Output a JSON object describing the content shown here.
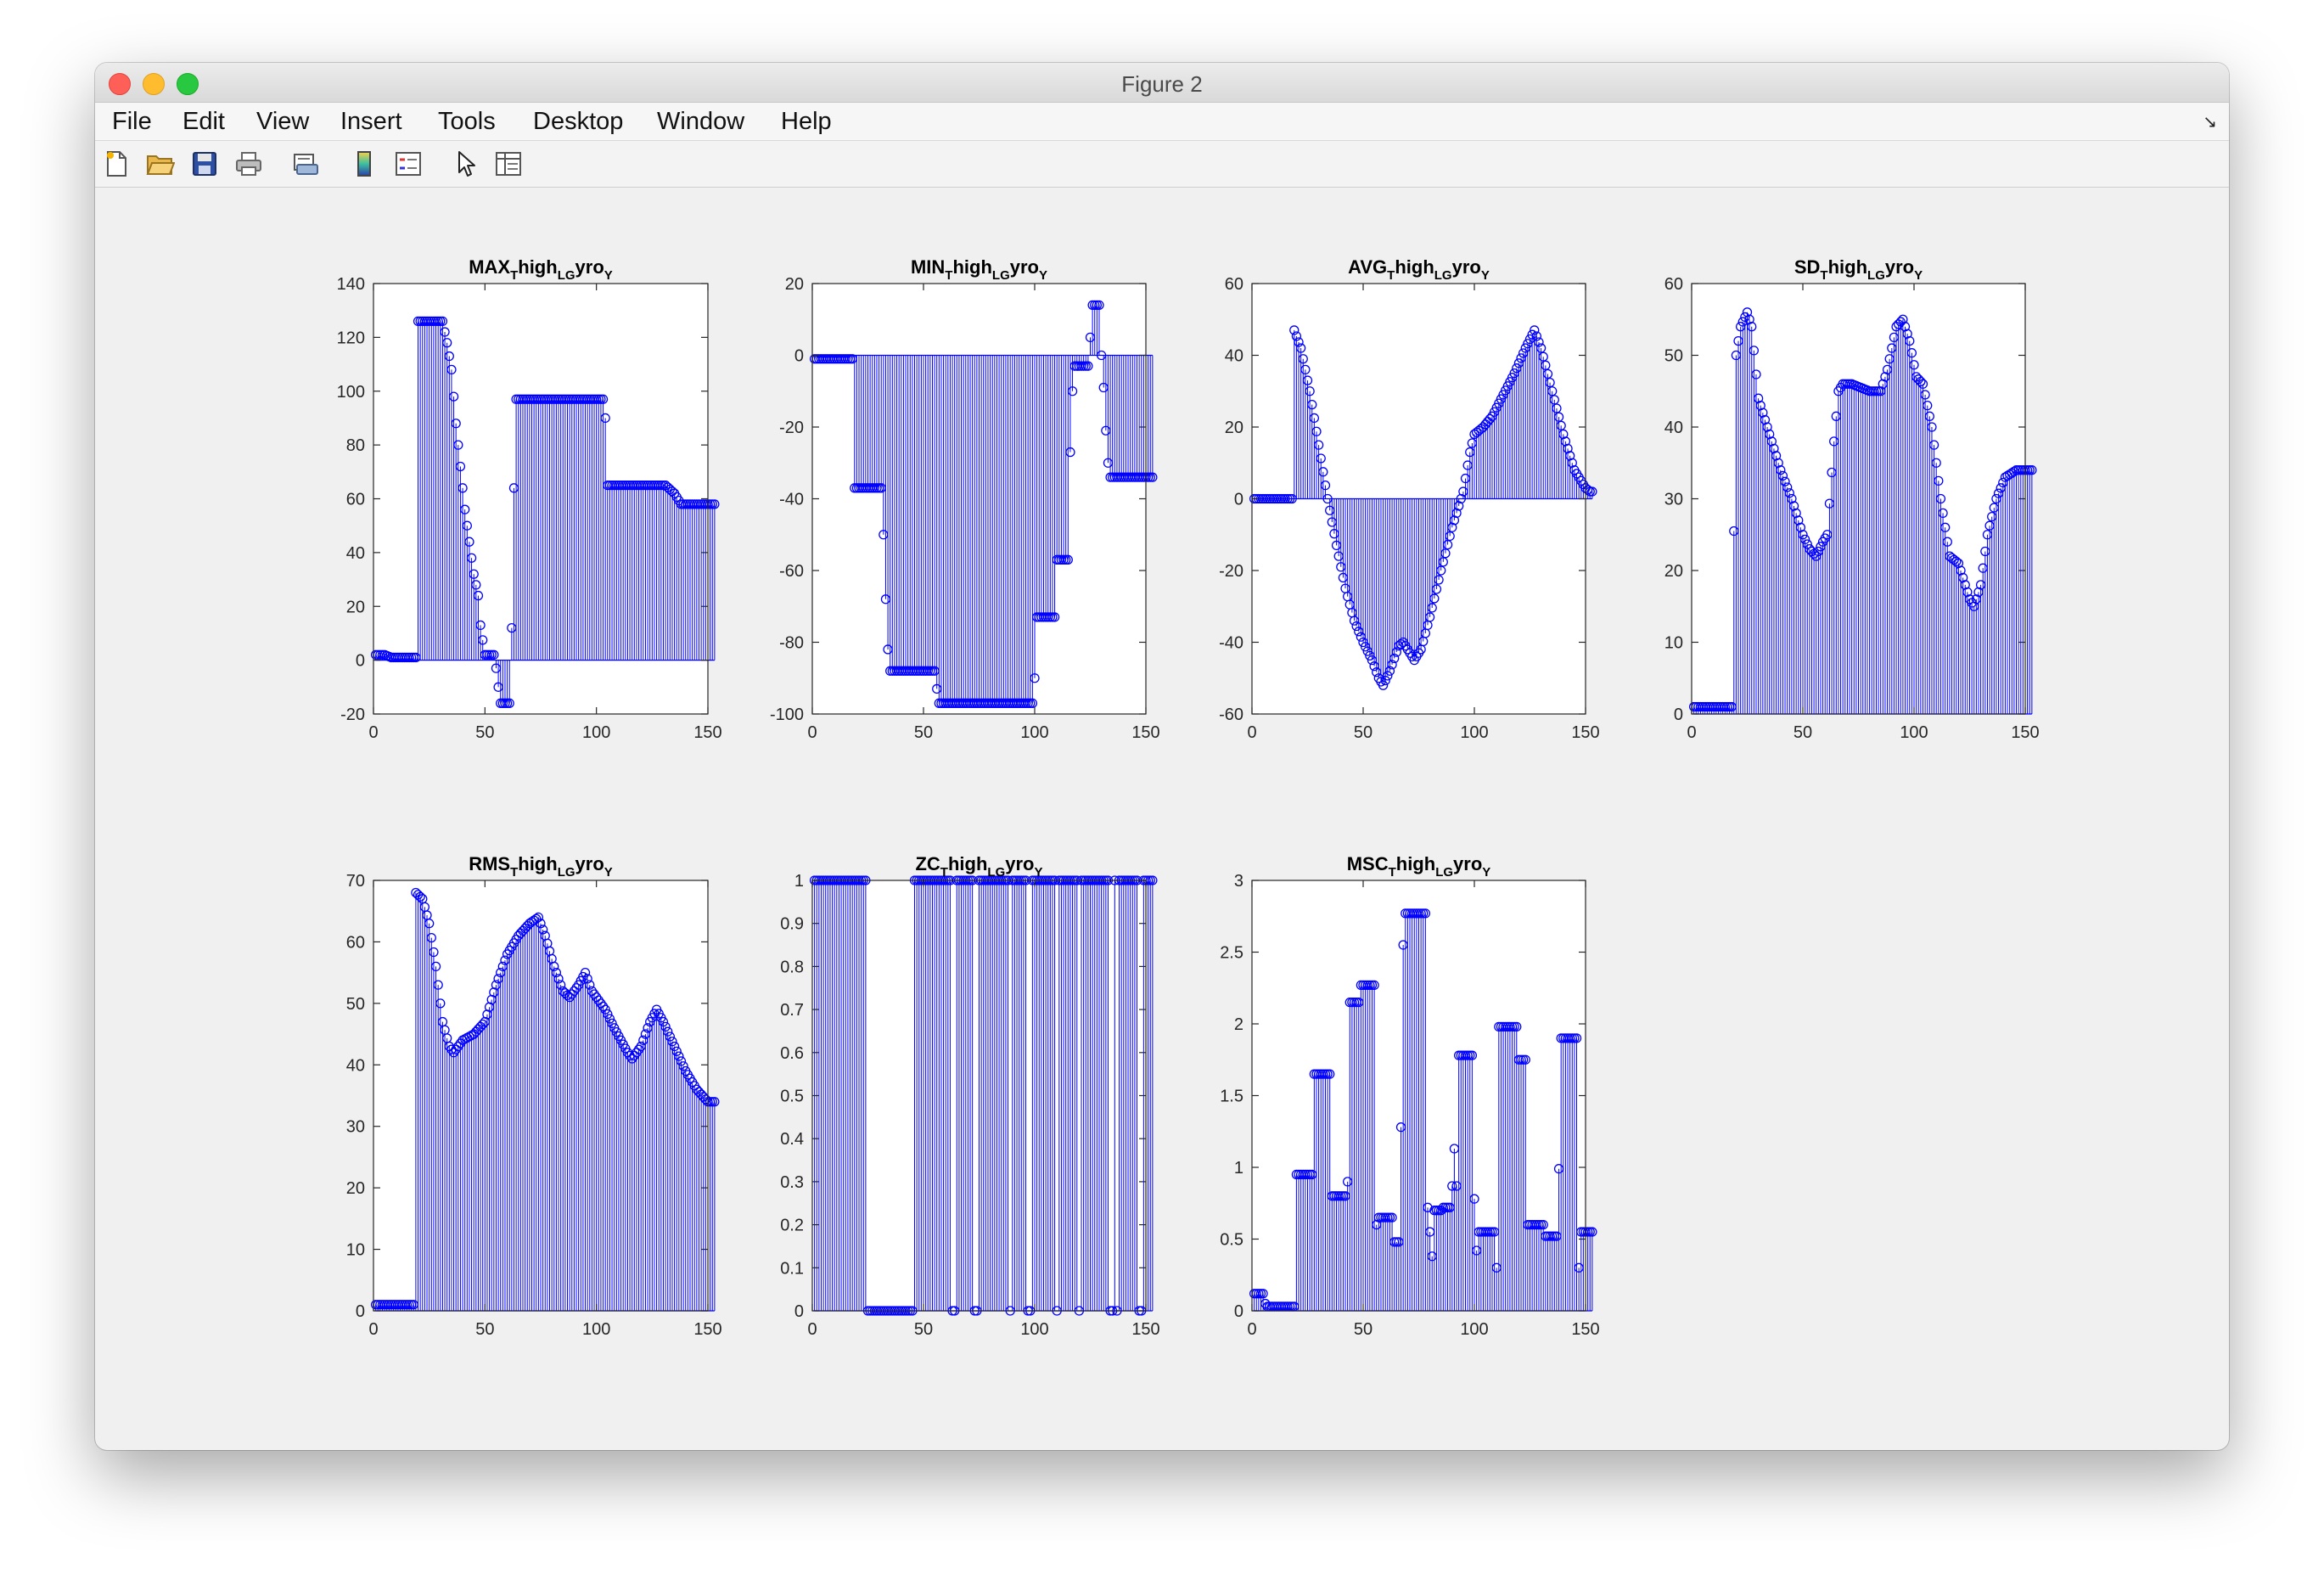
{
  "window": {
    "title": "Figure 2"
  },
  "menu": [
    "File",
    "Edit",
    "View",
    "Insert",
    "Tools",
    "Desktop",
    "Window",
    "Help"
  ],
  "toolbar": [
    "new-figure-icon",
    "open-file-icon",
    "save-icon",
    "print-icon",
    "print-preview-icon",
    "colorbar-icon",
    "legend-icon",
    "edit-plot-pointer-icon",
    "property-inspector-icon"
  ],
  "chart_data": [
    {
      "type": "stem",
      "title": "MAX_{T}high_{LG}yro_{Y}",
      "xlim": [
        0,
        150
      ],
      "ylim": [
        -20,
        140
      ],
      "xticks": [
        0,
        50,
        100,
        150
      ],
      "yticks": [
        -20,
        0,
        20,
        40,
        60,
        80,
        100,
        120,
        140
      ],
      "color": "#0000ff",
      "keypoints": [
        [
          1,
          2
        ],
        [
          5,
          2
        ],
        [
          8,
          1
        ],
        [
          14,
          1
        ],
        [
          19,
          1
        ],
        [
          20,
          126
        ],
        [
          31,
          126
        ],
        [
          33,
          118
        ],
        [
          35,
          108
        ],
        [
          37,
          88
        ],
        [
          39,
          72
        ],
        [
          41,
          56
        ],
        [
          43,
          44
        ],
        [
          45,
          32
        ],
        [
          47,
          24
        ],
        [
          48,
          13
        ],
        [
          50,
          2
        ],
        [
          54,
          2
        ],
        [
          55,
          -3
        ],
        [
          56,
          -10
        ],
        [
          57,
          -16
        ],
        [
          61,
          -16
        ],
        [
          62,
          12
        ],
        [
          63,
          64
        ],
        [
          64,
          97
        ],
        [
          103,
          97
        ],
        [
          104,
          90
        ],
        [
          105,
          65
        ],
        [
          131,
          65
        ],
        [
          135,
          62
        ],
        [
          138,
          58
        ],
        [
          153,
          58
        ]
      ]
    },
    {
      "type": "stem",
      "title": "MIN_{T}high_{LG}yro_{Y}",
      "xlim": [
        0,
        150
      ],
      "ylim": [
        -100,
        20
      ],
      "xticks": [
        0,
        50,
        100,
        150
      ],
      "yticks": [
        -100,
        -80,
        -60,
        -40,
        -20,
        0,
        20
      ],
      "color": "#0000ff",
      "keypoints": [
        [
          1,
          -1
        ],
        [
          18,
          -1
        ],
        [
          19,
          -37
        ],
        [
          31,
          -37
        ],
        [
          32,
          -50
        ],
        [
          33,
          -68
        ],
        [
          34,
          -82
        ],
        [
          35,
          -88
        ],
        [
          55,
          -88
        ],
        [
          56,
          -93
        ],
        [
          57,
          -97
        ],
        [
          99,
          -97
        ],
        [
          100,
          -90
        ],
        [
          101,
          -73
        ],
        [
          109,
          -73
        ],
        [
          110,
          -57
        ],
        [
          115,
          -57
        ],
        [
          116,
          -27
        ],
        [
          117,
          -10
        ],
        [
          118,
          -3
        ],
        [
          124,
          -3
        ],
        [
          125,
          5
        ],
        [
          126,
          14
        ],
        [
          129,
          14
        ],
        [
          130,
          0
        ],
        [
          131,
          -9
        ],
        [
          132,
          -21
        ],
        [
          133,
          -30
        ],
        [
          134,
          -34
        ],
        [
          153,
          -34
        ]
      ]
    },
    {
      "type": "stem",
      "title": "AVG_{T}high_{LG}yro_{Y}",
      "xlim": [
        0,
        150
      ],
      "ylim": [
        -60,
        60
      ],
      "xticks": [
        0,
        50,
        100,
        150
      ],
      "yticks": [
        -60,
        -40,
        -20,
        0,
        20,
        40,
        60
      ],
      "color": "#0000ff",
      "keypoints": [
        [
          1,
          0
        ],
        [
          18,
          0
        ],
        [
          19,
          47
        ],
        [
          22,
          42
        ],
        [
          26,
          30
        ],
        [
          30,
          15
        ],
        [
          34,
          0
        ],
        [
          38,
          -13
        ],
        [
          42,
          -25
        ],
        [
          46,
          -34
        ],
        [
          50,
          -40
        ],
        [
          54,
          -45
        ],
        [
          57,
          -50
        ],
        [
          59,
          -52
        ],
        [
          62,
          -48
        ],
        [
          66,
          -41
        ],
        [
          68,
          -40
        ],
        [
          70,
          -42
        ],
        [
          73,
          -45
        ],
        [
          76,
          -42
        ],
        [
          80,
          -33
        ],
        [
          85,
          -20
        ],
        [
          90,
          -8
        ],
        [
          95,
          2
        ],
        [
          98,
          13
        ],
        [
          100,
          18
        ],
        [
          104,
          20
        ],
        [
          108,
          23
        ],
        [
          113,
          29
        ],
        [
          118,
          35
        ],
        [
          123,
          42
        ],
        [
          127,
          47
        ],
        [
          130,
          42
        ],
        [
          135,
          30
        ],
        [
          140,
          18
        ],
        [
          145,
          8
        ],
        [
          150,
          3
        ],
        [
          152,
          2
        ]
      ]
    },
    {
      "type": "stem",
      "title": "SD_{T}high_{LG}yro_{Y}",
      "xlim": [
        0,
        150
      ],
      "ylim": [
        0,
        60
      ],
      "xticks": [
        0,
        50,
        100,
        150
      ],
      "yticks": [
        0,
        10,
        20,
        30,
        40,
        50,
        60
      ],
      "color": "#0000ff",
      "keypoints": [
        [
          1,
          1
        ],
        [
          18,
          1
        ],
        [
          20,
          50
        ],
        [
          22,
          54
        ],
        [
          25,
          56
        ],
        [
          27,
          54
        ],
        [
          30,
          44
        ],
        [
          35,
          39
        ],
        [
          40,
          34
        ],
        [
          45,
          30
        ],
        [
          50,
          25
        ],
        [
          53,
          23
        ],
        [
          56,
          22
        ],
        [
          59,
          24
        ],
        [
          61,
          25
        ],
        [
          64,
          38
        ],
        [
          66,
          45
        ],
        [
          68,
          46
        ],
        [
          72,
          46
        ],
        [
          80,
          45
        ],
        [
          85,
          45
        ],
        [
          88,
          48
        ],
        [
          92,
          54
        ],
        [
          95,
          55
        ],
        [
          98,
          52
        ],
        [
          101,
          47
        ],
        [
          104,
          46
        ],
        [
          108,
          40
        ],
        [
          112,
          30
        ],
        [
          116,
          22
        ],
        [
          120,
          21
        ],
        [
          122,
          19
        ],
        [
          125,
          16
        ],
        [
          127,
          15
        ],
        [
          130,
          18
        ],
        [
          133,
          25
        ],
        [
          137,
          30
        ],
        [
          141,
          33
        ],
        [
          146,
          34
        ],
        [
          152,
          34
        ]
      ]
    },
    {
      "type": "stem",
      "title": "RMS_{T}high_{LG}yro_{Y}",
      "xlim": [
        0,
        150
      ],
      "ylim": [
        0,
        70
      ],
      "xticks": [
        0,
        50,
        100,
        150
      ],
      "yticks": [
        0,
        10,
        20,
        30,
        40,
        50,
        60,
        70
      ],
      "color": "#0000ff",
      "keypoints": [
        [
          1,
          1
        ],
        [
          18,
          1
        ],
        [
          19,
          68
        ],
        [
          22,
          67
        ],
        [
          25,
          63
        ],
        [
          28,
          56
        ],
        [
          31,
          47
        ],
        [
          34,
          43
        ],
        [
          36,
          42
        ],
        [
          40,
          44
        ],
        [
          45,
          45
        ],
        [
          50,
          47
        ],
        [
          55,
          53
        ],
        [
          60,
          58
        ],
        [
          65,
          61
        ],
        [
          70,
          63
        ],
        [
          74,
          64
        ],
        [
          77,
          61
        ],
        [
          81,
          56
        ],
        [
          85,
          52
        ],
        [
          88,
          51
        ],
        [
          92,
          53
        ],
        [
          95,
          55
        ],
        [
          98,
          52
        ],
        [
          104,
          49
        ],
        [
          108,
          46
        ],
        [
          114,
          42
        ],
        [
          116,
          41
        ],
        [
          120,
          43
        ],
        [
          124,
          47
        ],
        [
          127,
          49
        ],
        [
          130,
          47
        ],
        [
          135,
          43
        ],
        [
          140,
          39
        ],
        [
          145,
          36
        ],
        [
          150,
          34
        ],
        [
          152,
          34
        ]
      ]
    },
    {
      "type": "stem",
      "title": "ZC_{T}high_{LG}yro_{Y}",
      "xlim": [
        0,
        150
      ],
      "ylim": [
        0,
        1
      ],
      "xticks": [
        0,
        50,
        100,
        150
      ],
      "yticks": [
        0,
        0.1,
        0.2,
        0.3,
        0.4,
        0.5,
        0.6,
        0.7,
        0.8,
        0.9,
        1
      ],
      "color": "#0000ff",
      "zero_indices": [
        25,
        26,
        27,
        28,
        29,
        30,
        31,
        32,
        33,
        34,
        35,
        36,
        37,
        38,
        39,
        40,
        41,
        42,
        43,
        44,
        45,
        63,
        64,
        73,
        74,
        89,
        97,
        98,
        110,
        120,
        134,
        135,
        137,
        147,
        148
      ]
    },
    {
      "type": "stem",
      "title": "MSC_{T}high_{LG}yro_{Y}",
      "xlim": [
        0,
        150
      ],
      "ylim": [
        0,
        3
      ],
      "xticks": [
        0,
        50,
        100,
        150
      ],
      "yticks": [
        0,
        0.5,
        1,
        1.5,
        2,
        2.5,
        3
      ],
      "color": "#0000ff",
      "keypoints": [
        [
          1,
          0.12
        ],
        [
          5,
          0.12
        ],
        [
          6,
          0.05
        ],
        [
          7,
          0.03
        ],
        [
          19,
          0.03
        ],
        [
          20,
          0.95
        ],
        [
          27,
          0.95
        ],
        [
          28,
          1.65
        ],
        [
          35,
          1.65
        ],
        [
          36,
          0.8
        ],
        [
          42,
          0.8
        ],
        [
          43,
          0.9
        ],
        [
          44,
          2.15
        ],
        [
          48,
          2.15
        ],
        [
          49,
          2.27
        ],
        [
          55,
          2.27
        ],
        [
          56,
          0.6
        ],
        [
          57,
          0.65
        ],
        [
          63,
          0.65
        ],
        [
          64,
          0.48
        ],
        [
          66,
          0.48
        ],
        [
          67,
          1.28
        ],
        [
          68,
          2.55
        ],
        [
          69,
          2.77
        ],
        [
          78,
          2.77
        ],
        [
          79,
          0.72
        ],
        [
          81,
          0.38
        ],
        [
          82,
          0.7
        ],
        [
          85,
          0.7
        ],
        [
          86,
          0.72
        ],
        [
          89,
          0.72
        ],
        [
          90,
          0.87
        ],
        [
          91,
          1.13
        ],
        [
          92,
          0.87
        ],
        [
          93,
          1.78
        ],
        [
          99,
          1.78
        ],
        [
          100,
          0.78
        ],
        [
          101,
          0.42
        ],
        [
          102,
          0.55
        ],
        [
          109,
          0.55
        ],
        [
          110,
          0.3
        ],
        [
          111,
          1.98
        ],
        [
          119,
          1.98
        ],
        [
          120,
          1.75
        ],
        [
          123,
          1.75
        ],
        [
          124,
          0.6
        ],
        [
          131,
          0.6
        ],
        [
          132,
          0.52
        ],
        [
          137,
          0.52
        ],
        [
          138,
          0.99
        ],
        [
          139,
          1.9
        ],
        [
          146,
          1.9
        ],
        [
          147,
          0.3
        ],
        [
          148,
          0.55
        ],
        [
          153,
          0.55
        ]
      ]
    }
  ]
}
